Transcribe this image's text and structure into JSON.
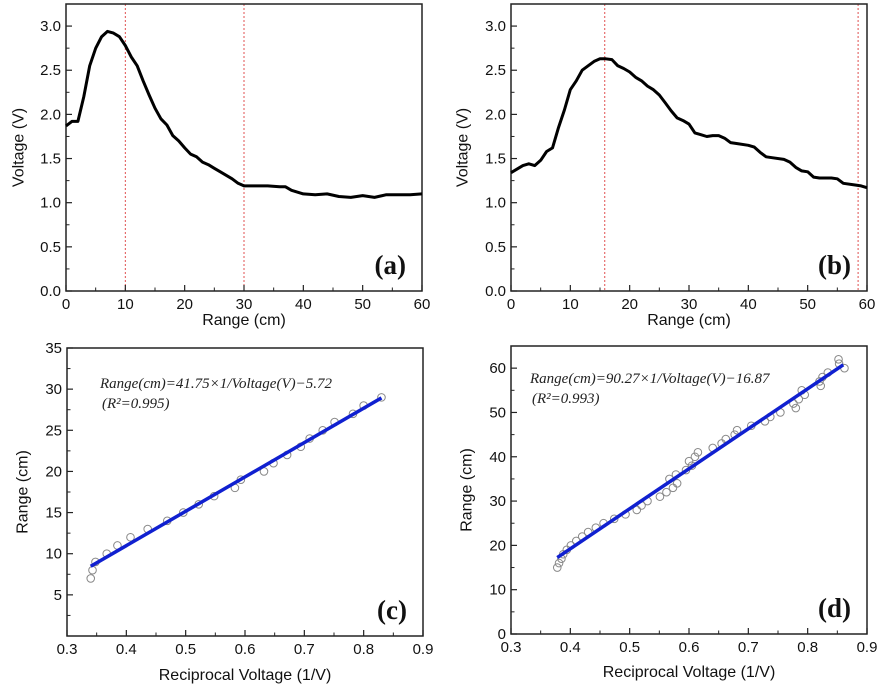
{
  "chart_data": [
    {
      "type": "line",
      "panel_label": "(a)",
      "xlabel": "Range (cm)",
      "ylabel": "Voltage (V)",
      "xlim": [
        0,
        60
      ],
      "ylim": [
        0,
        3.25
      ],
      "xticks": [
        "0",
        "10",
        "20",
        "30",
        "40",
        "50",
        "60"
      ],
      "yticks": [
        "0.0",
        "0.5",
        "1.0",
        "1.5",
        "2.0",
        "2.5",
        "3.0"
      ],
      "grid": false,
      "line_color": "#000000",
      "reference_lines_x": [
        10,
        30
      ],
      "reference_line_color": "#e05050",
      "x": [
        0,
        1,
        2,
        3,
        4,
        5,
        6,
        7,
        8,
        9,
        10,
        11,
        12,
        13,
        14,
        15,
        16,
        17,
        18,
        19,
        20,
        21,
        22,
        23,
        24,
        25,
        26,
        27,
        28,
        29,
        30,
        32,
        34,
        36,
        37,
        38,
        40,
        42,
        44,
        46,
        48,
        50,
        52,
        54,
        56,
        58,
        60
      ],
      "y": [
        1.87,
        1.92,
        1.92,
        2.2,
        2.55,
        2.75,
        2.88,
        2.94,
        2.92,
        2.88,
        2.78,
        2.65,
        2.55,
        2.38,
        2.22,
        2.07,
        1.95,
        1.88,
        1.76,
        1.7,
        1.62,
        1.55,
        1.52,
        1.46,
        1.43,
        1.39,
        1.35,
        1.31,
        1.27,
        1.22,
        1.19,
        1.19,
        1.19,
        1.18,
        1.18,
        1.14,
        1.1,
        1.09,
        1.1,
        1.07,
        1.06,
        1.08,
        1.06,
        1.09,
        1.09,
        1.09,
        1.1
      ]
    },
    {
      "type": "line",
      "panel_label": "(b)",
      "xlabel": "Range (cm)",
      "ylabel": "Voltage (V)",
      "xlim": [
        0,
        60
      ],
      "ylim": [
        0,
        3.25
      ],
      "xticks": [
        "0",
        "10",
        "20",
        "30",
        "40",
        "50",
        "60"
      ],
      "yticks": [
        "0.0",
        "0.5",
        "1.0",
        "1.5",
        "2.0",
        "2.5",
        "3.0"
      ],
      "grid": false,
      "line_color": "#000000",
      "reference_lines_x": [
        15.8,
        58.5
      ],
      "reference_line_color": "#e05050",
      "x": [
        0,
        2,
        3,
        4,
        5,
        6,
        7,
        8,
        9,
        10,
        11,
        12,
        13,
        14,
        15,
        16,
        17,
        18,
        19,
        20,
        21,
        22,
        23,
        24,
        25,
        26,
        27,
        28,
        29,
        30,
        31,
        32,
        33,
        34,
        35,
        36,
        37,
        38,
        40,
        41,
        42,
        43,
        44,
        46,
        47,
        48,
        49,
        50,
        51,
        52,
        54,
        55,
        56,
        58,
        59,
        60
      ],
      "y": [
        1.34,
        1.42,
        1.44,
        1.42,
        1.48,
        1.58,
        1.62,
        1.85,
        2.05,
        2.28,
        2.38,
        2.5,
        2.55,
        2.6,
        2.63,
        2.63,
        2.62,
        2.55,
        2.52,
        2.48,
        2.42,
        2.38,
        2.32,
        2.28,
        2.22,
        2.13,
        2.04,
        1.96,
        1.93,
        1.89,
        1.79,
        1.77,
        1.75,
        1.76,
        1.76,
        1.73,
        1.68,
        1.67,
        1.65,
        1.63,
        1.57,
        1.52,
        1.51,
        1.49,
        1.46,
        1.4,
        1.36,
        1.35,
        1.29,
        1.28,
        1.28,
        1.27,
        1.22,
        1.2,
        1.19,
        1.17
      ]
    },
    {
      "type": "scatter",
      "panel_label": "(c)",
      "xlabel": "Reciprocal Voltage (1/V)",
      "ylabel": "Range (cm)",
      "xlim": [
        0.3,
        0.9
      ],
      "ylim": [
        0,
        35
      ],
      "xticks": [
        "0.3",
        "0.4",
        "0.5",
        "0.6",
        "0.7",
        "0.8",
        "0.9"
      ],
      "yticks": [
        "5",
        "10",
        "15",
        "20",
        "25",
        "30",
        "35"
      ],
      "grid": false,
      "marker_color": "#888888",
      "fit_color": "#1020d0",
      "fit": {
        "slope": 41.75,
        "intercept": -5.72,
        "x_range": [
          0.34,
          0.83
        ]
      },
      "equation": "Range(cm)=41.75×1/Voltage(V)−5.72",
      "r2": "(R²=0.995)",
      "x": [
        0.34,
        0.343,
        0.348,
        0.367,
        0.385,
        0.407,
        0.436,
        0.469,
        0.496,
        0.522,
        0.548,
        0.583,
        0.593,
        0.632,
        0.648,
        0.671,
        0.694,
        0.709,
        0.731,
        0.751,
        0.782,
        0.8,
        0.83
      ],
      "y": [
        7,
        8,
        9,
        10,
        11,
        12,
        13,
        14,
        15,
        16,
        17,
        18,
        19,
        20,
        21,
        22,
        23,
        24,
        25,
        26,
        27,
        28,
        29
      ]
    },
    {
      "type": "scatter",
      "panel_label": "(d)",
      "xlabel": "Reciprocal Voltage (1/V)",
      "ylabel": "Range (cm)",
      "xlim": [
        0.3,
        0.9
      ],
      "ylim": [
        0,
        65
      ],
      "xticks": [
        "0.3",
        "0.4",
        "0.5",
        "0.6",
        "0.7",
        "0.8",
        "0.9"
      ],
      "yticks": [
        "0",
        "10",
        "20",
        "30",
        "40",
        "50",
        "60"
      ],
      "grid": false,
      "marker_color": "#888888",
      "fit_color": "#1020d0",
      "fit": {
        "slope": 90.27,
        "intercept": -16.87,
        "x_range": [
          0.378,
          0.86
        ]
      },
      "equation": "Range(cm)=90.27×1/Voltage(V)−16.87",
      "r2": "(R²=0.993)",
      "x": [
        0.378,
        0.381,
        0.385,
        0.388,
        0.394,
        0.401,
        0.41,
        0.42,
        0.43,
        0.443,
        0.456,
        0.474,
        0.493,
        0.512,
        0.52,
        0.53,
        0.551,
        0.562,
        0.573,
        0.58,
        0.567,
        0.578,
        0.595,
        0.605,
        0.6,
        0.61,
        0.615,
        0.64,
        0.655,
        0.662,
        0.677,
        0.681,
        0.705,
        0.728,
        0.737,
        0.754,
        0.78,
        0.776,
        0.785,
        0.795,
        0.79,
        0.822,
        0.82,
        0.825,
        0.834,
        0.862,
        0.853,
        0.852
      ],
      "y": [
        15,
        16,
        17,
        18,
        19,
        20,
        21,
        22,
        23,
        24,
        25,
        26,
        27,
        28,
        29,
        30,
        31,
        32,
        33,
        34,
        35,
        36,
        37,
        38,
        39,
        40,
        41,
        42,
        43,
        44,
        45,
        46,
        47,
        48,
        49,
        50,
        51,
        52,
        53,
        54,
        55,
        56,
        57,
        58,
        59,
        60,
        61,
        62
      ]
    }
  ]
}
